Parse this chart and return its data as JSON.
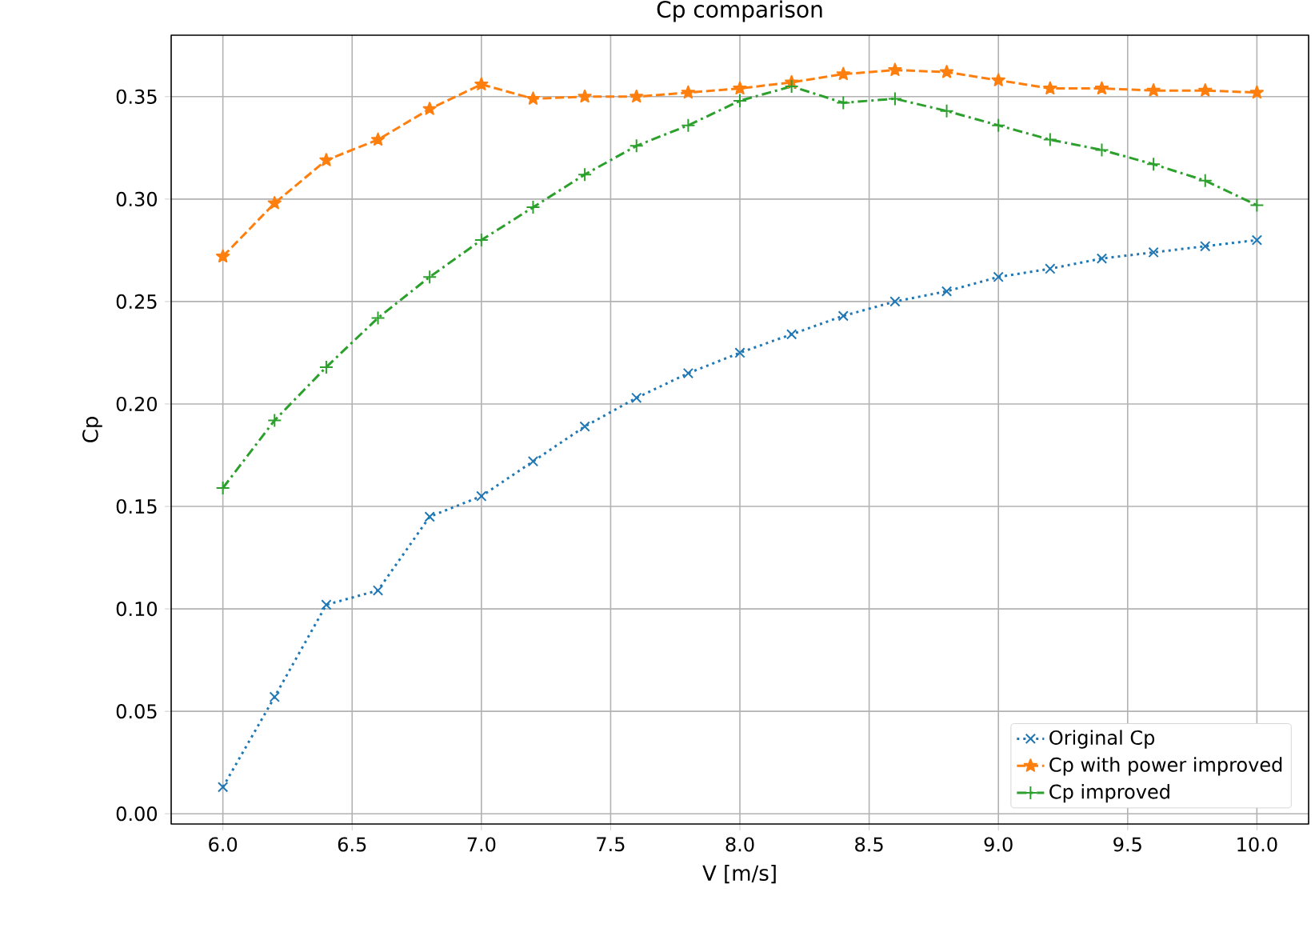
{
  "chart_data": {
    "type": "line",
    "title": "Cp comparison",
    "xlabel": "V [m/s]",
    "ylabel": "Cp",
    "x": [
      6.0,
      6.2,
      6.4,
      6.6,
      6.8,
      7.0,
      7.2,
      7.4,
      7.6,
      7.8,
      8.0,
      8.2,
      8.4,
      8.6,
      8.8,
      9.0,
      9.2,
      9.4,
      9.6,
      9.8,
      10.0
    ],
    "series": [
      {
        "name": "Original Cp",
        "color": "#1f77b4",
        "marker": "x",
        "line_style": "dotted",
        "values": [
          0.013,
          0.057,
          0.102,
          0.109,
          0.145,
          0.155,
          0.172,
          0.189,
          0.203,
          0.215,
          0.225,
          0.234,
          0.243,
          0.25,
          0.255,
          0.262,
          0.266,
          0.271,
          0.274,
          0.277,
          0.28
        ]
      },
      {
        "name": "Cp with power improved",
        "color": "#ff7f0e",
        "marker": "star",
        "line_style": "dashed",
        "values": [
          0.272,
          0.298,
          0.319,
          0.329,
          0.344,
          0.356,
          0.349,
          0.35,
          0.35,
          0.352,
          0.354,
          0.357,
          0.361,
          0.363,
          0.362,
          0.358,
          0.354,
          0.354,
          0.353,
          0.353,
          0.352
        ]
      },
      {
        "name": "Cp improved",
        "color": "#2ca02c",
        "marker": "plus",
        "line_style": "dashdot",
        "values": [
          0.159,
          0.192,
          0.218,
          0.242,
          0.262,
          0.28,
          0.296,
          0.312,
          0.326,
          0.336,
          0.348,
          0.355,
          0.347,
          0.349,
          0.343,
          0.336,
          0.329,
          0.324,
          0.317,
          0.309,
          0.297
        ]
      }
    ],
    "xlim": [
      5.8,
      10.2
    ],
    "ylim": [
      -0.005,
      0.38
    ],
    "xticks": [
      {
        "value": 6.0,
        "label": "6.0"
      },
      {
        "value": 6.5,
        "label": "6.5"
      },
      {
        "value": 7.0,
        "label": "7.0"
      },
      {
        "value": 7.5,
        "label": "7.5"
      },
      {
        "value": 8.0,
        "label": "8.0"
      },
      {
        "value": 8.5,
        "label": "8.5"
      },
      {
        "value": 9.0,
        "label": "9.0"
      },
      {
        "value": 9.5,
        "label": "9.5"
      },
      {
        "value": 10.0,
        "label": "10.0"
      }
    ],
    "yticks": [
      {
        "value": 0.0,
        "label": "0.00"
      },
      {
        "value": 0.05,
        "label": "0.05"
      },
      {
        "value": 0.1,
        "label": "0.10"
      },
      {
        "value": 0.15,
        "label": "0.15"
      },
      {
        "value": 0.2,
        "label": "0.20"
      },
      {
        "value": 0.25,
        "label": "0.25"
      },
      {
        "value": 0.3,
        "label": "0.30"
      },
      {
        "value": 0.35,
        "label": "0.35"
      }
    ],
    "grid": true,
    "legend": "bottom right"
  }
}
